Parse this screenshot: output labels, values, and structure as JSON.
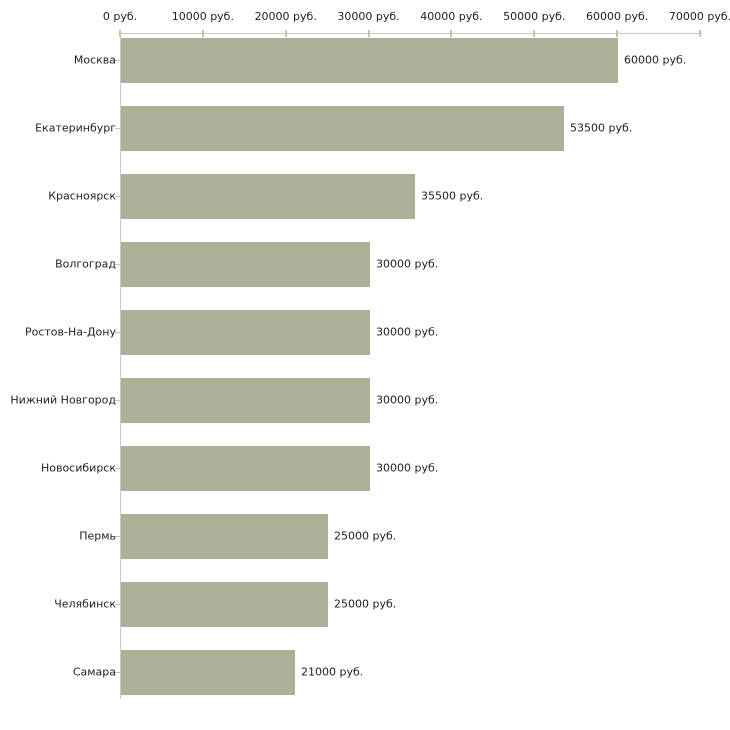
{
  "chart_data": {
    "type": "bar",
    "orientation": "horizontal",
    "title": "",
    "xlabel": "",
    "ylabel": "",
    "unit": "руб.",
    "categories": [
      "Москва",
      "Екатеринбург",
      "Красноярск",
      "Волгоград",
      "Ростов-На-Дону",
      "Нижний Новгород",
      "Новосибирск",
      "Пермь",
      "Челябинск",
      "Самара"
    ],
    "values": [
      60000,
      53500,
      35500,
      30000,
      30000,
      30000,
      30000,
      25000,
      25000,
      21000
    ],
    "value_labels": [
      "60000 руб.",
      "53500 руб.",
      "35500 руб.",
      "30000 руб.",
      "30000 руб.",
      "30000 руб.",
      "30000 руб.",
      "25000 руб.",
      "25000 руб.",
      "21000 руб."
    ],
    "x_ticks": [
      0,
      10000,
      20000,
      30000,
      40000,
      50000,
      60000,
      70000
    ],
    "x_tick_labels": [
      "0 руб.",
      "10000 руб.",
      "20000 руб.",
      "30000 руб.",
      "40000 руб.",
      "50000 руб.",
      "60000 руб.",
      "70000 руб."
    ],
    "xlim": [
      0,
      70000
    ],
    "axis_position": "top",
    "grid": false,
    "legend": false,
    "colors": {
      "bar": "#abb199",
      "axis_line": "#c9c9c9",
      "tick": "#c6c6a4",
      "text": "#222222",
      "background": "#ffffff"
    }
  }
}
